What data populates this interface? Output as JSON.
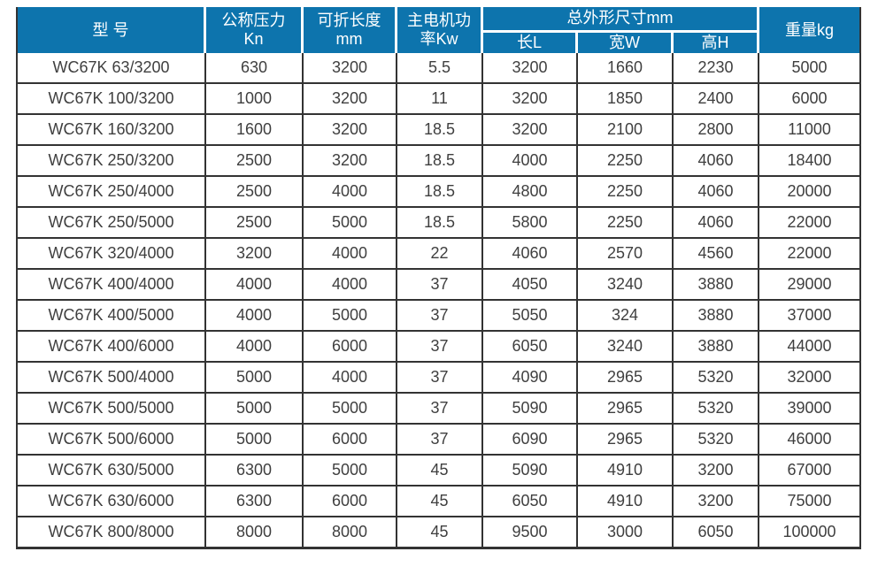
{
  "theme": {
    "header_bg": "#0d74ad",
    "header_text": "#ffffff",
    "border": "#333333",
    "text": "#3f3f3f",
    "background": "#ffffff"
  },
  "table": {
    "header": {
      "model": "型 号",
      "pressure": {
        "line1": "公称压力",
        "line2": "Kn"
      },
      "fold_length": {
        "line1": "可折长度",
        "line2": "mm"
      },
      "motor_power": {
        "line1": "主电机功",
        "line2": "率Kw"
      },
      "dimensions_group": "总外形尺寸mm",
      "dim_length": "长L",
      "dim_width": "宽W",
      "dim_height": "高H",
      "weight": "重量kg"
    },
    "rows": [
      [
        "WC67K 63/3200",
        "630",
        "3200",
        "5.5",
        "3200",
        "1660",
        "2230",
        "5000"
      ],
      [
        "WC67K 100/3200",
        "1000",
        "3200",
        "11",
        "3200",
        "1850",
        "2400",
        "6000"
      ],
      [
        "WC67K 160/3200",
        "1600",
        "3200",
        "18.5",
        "3200",
        "2100",
        "2800",
        "11000"
      ],
      [
        "WC67K 250/3200",
        "2500",
        "3200",
        "18.5",
        "4000",
        "2250",
        "4060",
        "18400"
      ],
      [
        "WC67K 250/4000",
        "2500",
        "4000",
        "18.5",
        "4800",
        "2250",
        "4060",
        "20000"
      ],
      [
        "WC67K 250/5000",
        "2500",
        "5000",
        "18.5",
        "5800",
        "2250",
        "4060",
        "22000"
      ],
      [
        "WC67K 320/4000",
        "3200",
        "4000",
        "22",
        "4060",
        "2570",
        "4560",
        "22000"
      ],
      [
        "WC67K 400/4000",
        "4000",
        "4000",
        "37",
        "4050",
        "3240",
        "3880",
        "29000"
      ],
      [
        "WC67K 400/5000",
        "4000",
        "5000",
        "37",
        "5050",
        "324",
        "3880",
        "37000"
      ],
      [
        "WC67K 400/6000",
        "4000",
        "6000",
        "37",
        "6050",
        "3240",
        "3880",
        "44000"
      ],
      [
        "WC67K 500/4000",
        "5000",
        "4000",
        "37",
        "4090",
        "2965",
        "5320",
        "32000"
      ],
      [
        "WC67K 500/5000",
        "5000",
        "5000",
        "37",
        "5090",
        "2965",
        "5320",
        "39000"
      ],
      [
        "WC67K 500/6000",
        "5000",
        "6000",
        "37",
        "6090",
        "2965",
        "5320",
        "46000"
      ],
      [
        "WC67K 630/5000",
        "6300",
        "5000",
        "45",
        "5090",
        "4910",
        "3200",
        "67000"
      ],
      [
        "WC67K 630/6000",
        "6300",
        "6000",
        "45",
        "6050",
        "4910",
        "3200",
        "75000"
      ],
      [
        "WC67K 800/8000",
        "8000",
        "8000",
        "45",
        "9500",
        "3000",
        "6050",
        "100000"
      ]
    ]
  }
}
